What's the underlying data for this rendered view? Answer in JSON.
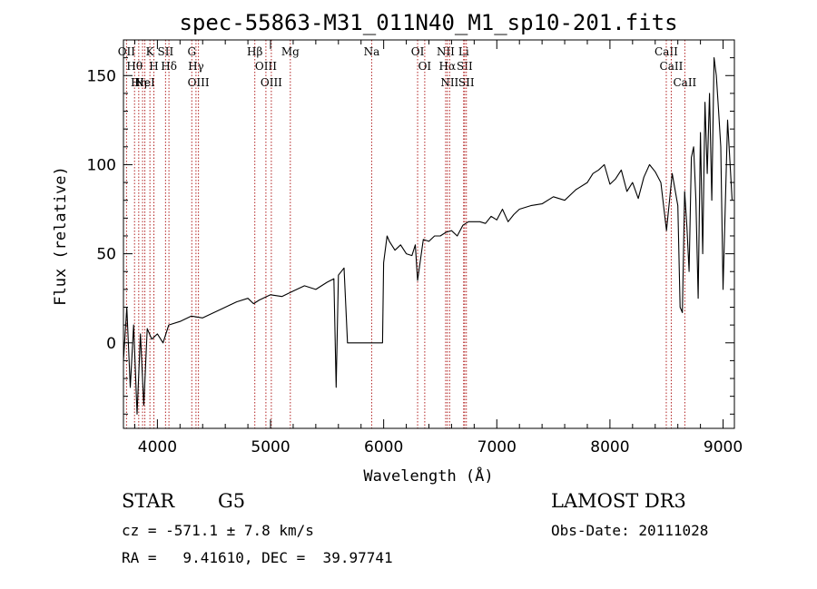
{
  "chart_data": {
    "type": "line",
    "title": "spec-55863-M31_011N40_M1_sp10-201.fits",
    "xlabel": "Wavelength (Å)",
    "ylabel": "Flux (relative)",
    "xlim": [
      3700,
      9100
    ],
    "ylim": [
      -48,
      170
    ],
    "xticks": [
      4000,
      5000,
      6000,
      7000,
      8000,
      9000
    ],
    "yticks": [
      0,
      50,
      100,
      150
    ],
    "series": [
      {
        "name": "flux",
        "x": [
          3700,
          3730,
          3760,
          3790,
          3820,
          3850,
          3880,
          3910,
          3950,
          4000,
          4050,
          4100,
          4200,
          4300,
          4400,
          4500,
          4600,
          4700,
          4800,
          4850,
          4900,
          5000,
          5100,
          5200,
          5300,
          5400,
          5500,
          5560,
          5580,
          5600,
          5650,
          5680,
          5700,
          5800,
          5900,
          5990,
          6000,
          6030,
          6050,
          6100,
          6150,
          6200,
          6250,
          6280,
          6300,
          6350,
          6400,
          6450,
          6500,
          6550,
          6600,
          6650,
          6700,
          6750,
          6800,
          6850,
          6900,
          6950,
          7000,
          7050,
          7100,
          7150,
          7200,
          7300,
          7400,
          7500,
          7600,
          7700,
          7800,
          7850,
          7900,
          7950,
          8000,
          8050,
          8100,
          8150,
          8200,
          8250,
          8300,
          8350,
          8400,
          8450,
          8500,
          8550,
          8600,
          8620,
          8640,
          8660,
          8680,
          8700,
          8720,
          8740,
          8760,
          8780,
          8800,
          8820,
          8840,
          8860,
          8880,
          8900,
          8920,
          8940,
          8960,
          8980,
          9000,
          9040,
          9080
        ],
        "y": [
          -10,
          20,
          -25,
          10,
          -40,
          5,
          -35,
          8,
          2,
          5,
          0,
          10,
          12,
          15,
          14,
          17,
          20,
          23,
          25,
          22,
          24,
          27,
          26,
          29,
          32,
          30,
          34,
          36,
          -25,
          38,
          42,
          0,
          0,
          0,
          0,
          0,
          45,
          60,
          57,
          52,
          55,
          50,
          49,
          55,
          35,
          58,
          57,
          60,
          60,
          62,
          63,
          60,
          66,
          68,
          68,
          68,
          67,
          71,
          69,
          75,
          68,
          72,
          75,
          77,
          78,
          82,
          80,
          86,
          90,
          95,
          97,
          100,
          89,
          92,
          97,
          85,
          90,
          81,
          93,
          100,
          96,
          90,
          63,
          95,
          77,
          20,
          17,
          85,
          65,
          40,
          104,
          110,
          80,
          25,
          118,
          50,
          135,
          95,
          140,
          80,
          160,
          150,
          130,
          110,
          30,
          125,
          80
        ]
      }
    ],
    "lines": [
      {
        "x": 3798,
        "label": "Hθ"
      },
      {
        "x": 3727,
        "label": "OII"
      },
      {
        "x": 3835,
        "label": "Hη"
      },
      {
        "x": 3869,
        "label": "Ne"
      },
      {
        "x": 3889,
        "label": "HeI"
      },
      {
        "x": 3934,
        "label": "K"
      },
      {
        "x": 3969,
        "label": "H"
      },
      {
        "x": 4072,
        "label": "SII"
      },
      {
        "x": 4102,
        "label": "Hδ"
      },
      {
        "x": 4304,
        "label": "G"
      },
      {
        "x": 4341,
        "label": "Hγ"
      },
      {
        "x": 4363,
        "label": "OIII"
      },
      {
        "x": 4861,
        "label": "Hβ"
      },
      {
        "x": 4959,
        "label": "OIII"
      },
      {
        "x": 5007,
        "label": "OIII"
      },
      {
        "x": 5175,
        "label": "Mg"
      },
      {
        "x": 5894,
        "label": "Na"
      },
      {
        "x": 6300,
        "label": "OI"
      },
      {
        "x": 6363,
        "label": "OI"
      },
      {
        "x": 6548,
        "label": "NII"
      },
      {
        "x": 6563,
        "label": "Hα"
      },
      {
        "x": 6583,
        "label": "NII"
      },
      {
        "x": 6707,
        "label": "Li"
      },
      {
        "x": 6716,
        "label": "SII"
      },
      {
        "x": 6731,
        "label": "SII"
      },
      {
        "x": 8498,
        "label": "CaII"
      },
      {
        "x": 8542,
        "label": "CaII"
      },
      {
        "x": 8662,
        "label": "CaII"
      }
    ],
    "line_color": "#b22222"
  },
  "info": {
    "object_class": "STAR",
    "subclass": "G5",
    "survey": "LAMOST DR3",
    "cz": "cz = -571.1 ± 7.8 km/s",
    "obs_date": "Obs-Date: 20111028",
    "coords": "RA =   9.41610, DEC =  39.97741"
  }
}
